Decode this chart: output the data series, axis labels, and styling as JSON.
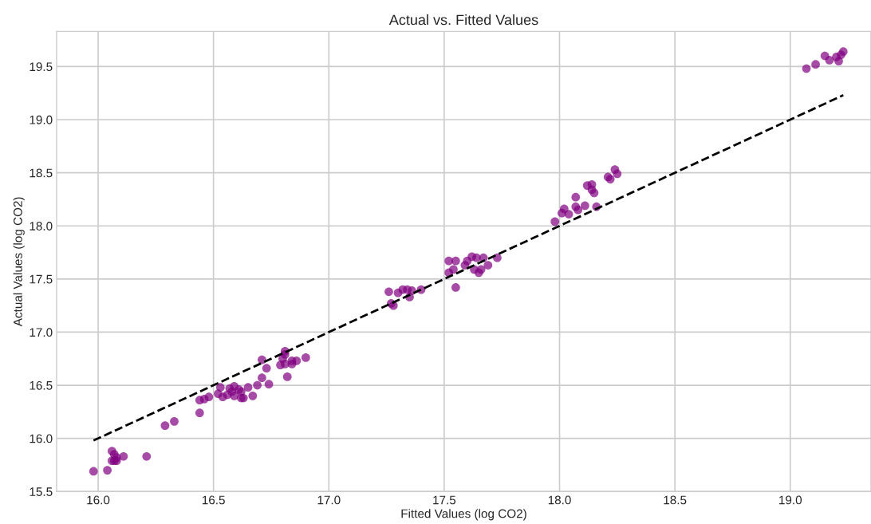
{
  "chart_data": {
    "type": "scatter",
    "title": "Actual vs. Fitted Values",
    "xlabel": "Fitted Values (log CO2)",
    "ylabel": "Actual Values (log CO2)",
    "xlim": [
      15.82,
      19.35
    ],
    "ylim": [
      15.5,
      19.83
    ],
    "xticks": [
      {
        "value": 16,
        "label": "16.0"
      },
      {
        "value": 16.5,
        "label": "16.5"
      },
      {
        "value": 17,
        "label": "17.0"
      },
      {
        "value": 17.5,
        "label": "17.5"
      },
      {
        "value": 18,
        "label": "18.0"
      },
      {
        "value": 18.5,
        "label": "18.5"
      },
      {
        "value": 19,
        "label": "19.0"
      }
    ],
    "yticks": [
      {
        "value": 15.5,
        "label": "15.5"
      },
      {
        "value": 16,
        "label": "16.0"
      },
      {
        "value": 16.5,
        "label": "16.5"
      },
      {
        "value": 17,
        "label": "17.0"
      },
      {
        "value": 17.5,
        "label": "17.5"
      },
      {
        "value": 18,
        "label": "18.0"
      },
      {
        "value": 18.5,
        "label": "18.5"
      },
      {
        "value": 19,
        "label": "19.0"
      },
      {
        "value": 19.5,
        "label": "19.5"
      }
    ],
    "grid": true,
    "marker": "circle",
    "series": [
      {
        "color": "#800080",
        "x": [
          15.98,
          16.04,
          16.06,
          16.07,
          16.07,
          16.06,
          16.08,
          16.08,
          16.11,
          16.21,
          16.29,
          16.33,
          16.44,
          16.44,
          16.46,
          16.48,
          16.52,
          16.53,
          16.54,
          16.56,
          16.57,
          16.58,
          16.59,
          16.61,
          16.62,
          16.63,
          16.62,
          16.65,
          16.59,
          16.69,
          16.71,
          16.67,
          16.74,
          16.71,
          16.73,
          16.79,
          16.81,
          16.8,
          16.84,
          16.86,
          16.82,
          16.81,
          16.81,
          16.84,
          16.9,
          17.26,
          17.27,
          17.28,
          17.3,
          17.32,
          17.34,
          17.35,
          17.36,
          17.4,
          17.52,
          17.55,
          17.52,
          17.54,
          17.55,
          17.59,
          17.6,
          17.62,
          17.64,
          17.63,
          17.65,
          17.66,
          17.67,
          17.69,
          17.73,
          17.98,
          18.01,
          18.02,
          18.04,
          18.07,
          18.07,
          18.08,
          18.11,
          18.12,
          18.14,
          18.14,
          18.15,
          18.16,
          18.21,
          18.22,
          18.24,
          18.25,
          19.07,
          19.11,
          19.15,
          19.17,
          19.2,
          19.21,
          19.23,
          19.22
        ],
        "values": [
          15.69,
          15.7,
          15.88,
          15.85,
          15.79,
          15.79,
          15.79,
          15.82,
          15.83,
          15.83,
          16.12,
          16.16,
          16.24,
          16.36,
          16.37,
          16.39,
          16.42,
          16.48,
          16.39,
          16.41,
          16.47,
          16.44,
          16.49,
          16.46,
          16.44,
          16.38,
          16.38,
          16.48,
          16.4,
          16.5,
          16.57,
          16.4,
          16.51,
          16.74,
          16.66,
          16.69,
          16.7,
          16.75,
          16.73,
          16.73,
          16.58,
          16.79,
          16.82,
          16.7,
          16.76,
          17.38,
          17.27,
          17.25,
          17.37,
          17.4,
          17.4,
          17.33,
          17.39,
          17.4,
          17.67,
          17.67,
          17.56,
          17.59,
          17.42,
          17.63,
          17.67,
          17.71,
          17.7,
          17.59,
          17.56,
          17.59,
          17.7,
          17.63,
          17.7,
          18.04,
          18.12,
          18.16,
          18.11,
          18.27,
          18.18,
          18.15,
          18.19,
          18.38,
          18.39,
          18.34,
          18.31,
          18.18,
          18.46,
          18.44,
          18.53,
          18.49,
          19.48,
          19.52,
          19.6,
          19.56,
          19.59,
          19.55,
          19.64,
          19.61
        ]
      },
      {
        "type": "line",
        "color": "#000000",
        "line_style": "dashed",
        "marker": "none",
        "x": [
          15.98,
          19.23
        ],
        "values": [
          15.98,
          19.23
        ]
      }
    ]
  }
}
